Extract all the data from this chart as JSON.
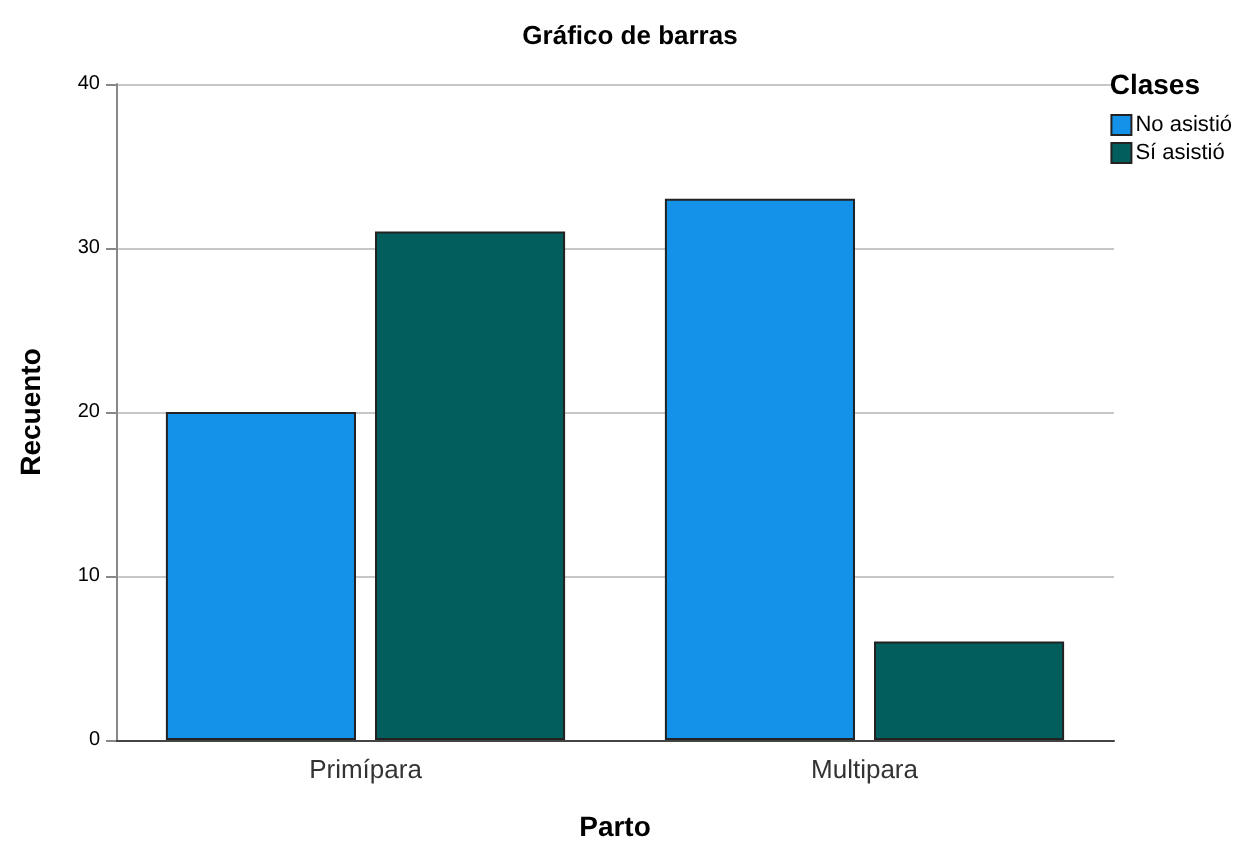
{
  "chart_data": {
    "type": "bar",
    "title": "Gráfico de barras",
    "xlabel": "Parto",
    "ylabel": "Recuento",
    "legend_title": "Clases",
    "categories": [
      "Primípara",
      "Multipara"
    ],
    "series": [
      {
        "name": "No asistió",
        "color": "#1491e8",
        "values": [
          20,
          33
        ]
      },
      {
        "name": "Sí asistió",
        "color": "#025e5c",
        "values": [
          31,
          6
        ]
      }
    ],
    "ylim": [
      0,
      40
    ],
    "yticks": [
      0,
      10,
      20,
      30,
      40
    ],
    "grid": "y",
    "legend": "top right"
  }
}
